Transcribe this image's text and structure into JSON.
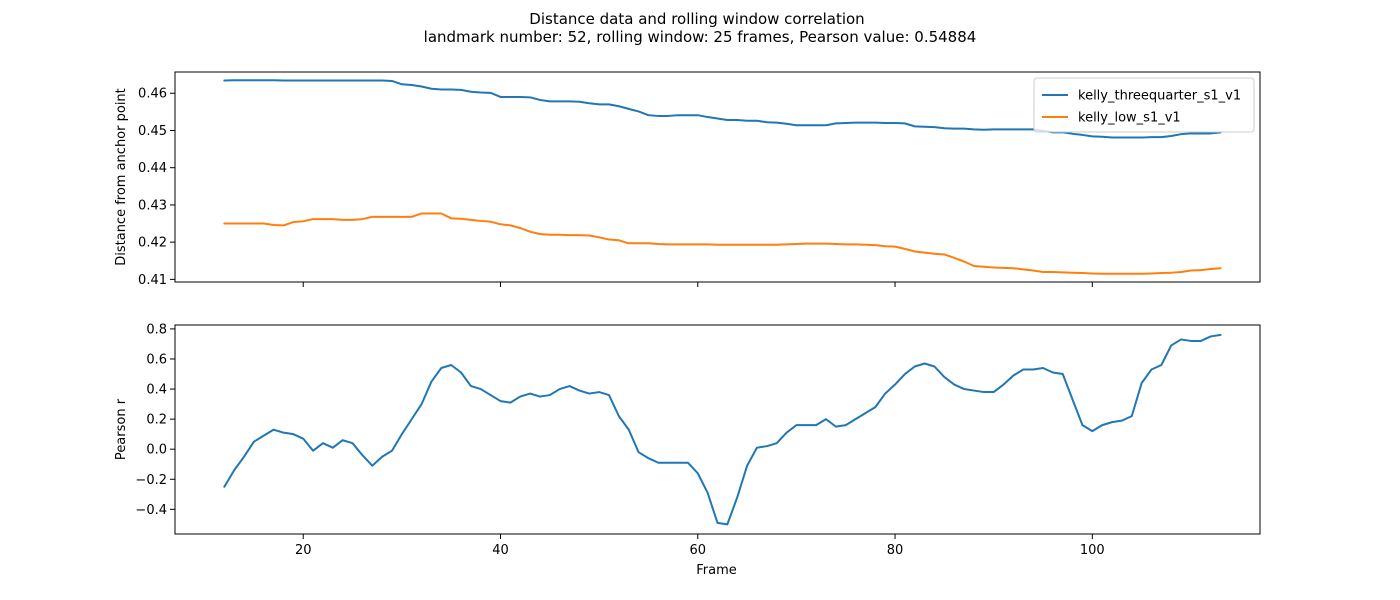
{
  "figure": {
    "title_line1": "Distance data and rolling window correlation",
    "title_line2": "landmark number: 52, rolling window: 25 frames, Pearson value: 0.54884"
  },
  "chart_data": [
    {
      "type": "line",
      "ylabel": "Distance from anchor point",
      "xlabel": "",
      "xlim": [
        7,
        117
      ],
      "ylim": [
        0.4093,
        0.4657
      ],
      "xticks": [
        20,
        40,
        60,
        80,
        100
      ],
      "xtick_labels": [
        "",
        "",
        "",
        "",
        ""
      ],
      "yticks": [
        0.41,
        0.42,
        0.43,
        0.44,
        0.45,
        0.46
      ],
      "ytick_labels": [
        "0.41",
        "0.42",
        "0.43",
        "0.44",
        "0.45",
        "0.46"
      ],
      "grid": false,
      "legend": "top-right",
      "x": [
        12,
        13,
        14,
        15,
        16,
        17,
        18,
        19,
        20,
        21,
        22,
        23,
        24,
        25,
        26,
        27,
        28,
        29,
        30,
        31,
        32,
        33,
        34,
        35,
        36,
        37,
        38,
        39,
        40,
        41,
        42,
        43,
        44,
        45,
        46,
        47,
        48,
        49,
        50,
        51,
        52,
        53,
        54,
        55,
        56,
        57,
        58,
        59,
        60,
        61,
        62,
        63,
        64,
        65,
        66,
        67,
        68,
        69,
        70,
        71,
        72,
        73,
        74,
        75,
        76,
        77,
        78,
        79,
        80,
        81,
        82,
        83,
        84,
        85,
        86,
        87,
        88,
        89,
        90,
        91,
        92,
        93,
        94,
        95,
        96,
        97,
        98,
        99,
        100,
        101,
        102,
        103,
        104,
        105,
        106,
        107,
        108,
        109,
        110,
        111,
        112,
        113
      ],
      "series": [
        {
          "name": "kelly_threequarter_s1_v1",
          "color": "#1f77b4",
          "values": [
            0.4634,
            0.4635,
            0.4635,
            0.4635,
            0.4635,
            0.4635,
            0.4634,
            0.4634,
            0.4634,
            0.4634,
            0.4634,
            0.4634,
            0.4634,
            0.4634,
            0.4634,
            0.4634,
            0.4634,
            0.4633,
            0.4624,
            0.4622,
            0.4618,
            0.4612,
            0.461,
            0.461,
            0.4609,
            0.4604,
            0.4602,
            0.4601,
            0.459,
            0.459,
            0.459,
            0.4589,
            0.4582,
            0.4578,
            0.4578,
            0.4578,
            0.4577,
            0.4573,
            0.457,
            0.457,
            0.4565,
            0.4558,
            0.4551,
            0.4541,
            0.4539,
            0.4539,
            0.4541,
            0.4541,
            0.4541,
            0.4536,
            0.4532,
            0.4528,
            0.4528,
            0.4526,
            0.4526,
            0.4522,
            0.4521,
            0.4518,
            0.4514,
            0.4514,
            0.4514,
            0.4514,
            0.4519,
            0.452,
            0.4521,
            0.4521,
            0.4521,
            0.452,
            0.452,
            0.4519,
            0.4511,
            0.451,
            0.4509,
            0.4506,
            0.4505,
            0.4505,
            0.4503,
            0.4502,
            0.4503,
            0.4503,
            0.4503,
            0.4503,
            0.4503,
            0.4499,
            0.4495,
            0.4495,
            0.4491,
            0.4488,
            0.4484,
            0.4483,
            0.4481,
            0.4481,
            0.4481,
            0.4481,
            0.4482,
            0.4482,
            0.4485,
            0.449,
            0.4492,
            0.4492,
            0.4492,
            0.4495
          ]
        },
        {
          "name": "kelly_low_s1_v1",
          "color": "#ff7f0e",
          "values": [
            0.425,
            0.425,
            0.425,
            0.425,
            0.425,
            0.4246,
            0.4245,
            0.4254,
            0.4256,
            0.4262,
            0.4262,
            0.4262,
            0.426,
            0.426,
            0.4262,
            0.4268,
            0.4268,
            0.4268,
            0.4268,
            0.4268,
            0.4277,
            0.4277,
            0.4277,
            0.4264,
            0.4263,
            0.426,
            0.4257,
            0.4255,
            0.4248,
            0.4245,
            0.4238,
            0.4228,
            0.4222,
            0.422,
            0.422,
            0.4219,
            0.4219,
            0.4218,
            0.4213,
            0.4207,
            0.4205,
            0.4197,
            0.4197,
            0.4197,
            0.4195,
            0.4194,
            0.4194,
            0.4194,
            0.4194,
            0.4194,
            0.4193,
            0.4193,
            0.4193,
            0.4193,
            0.4193,
            0.4193,
            0.4193,
            0.4194,
            0.4195,
            0.4196,
            0.4196,
            0.4196,
            0.4195,
            0.4194,
            0.4194,
            0.4193,
            0.4192,
            0.4189,
            0.4188,
            0.4182,
            0.4175,
            0.4172,
            0.4169,
            0.4167,
            0.4158,
            0.4148,
            0.4136,
            0.4134,
            0.4132,
            0.4131,
            0.413,
            0.4127,
            0.4124,
            0.412,
            0.412,
            0.4119,
            0.4118,
            0.4117,
            0.4116,
            0.4115,
            0.4115,
            0.4115,
            0.4115,
            0.4115,
            0.4116,
            0.4117,
            0.4118,
            0.412,
            0.4124,
            0.4125,
            0.4128,
            0.413
          ]
        }
      ]
    },
    {
      "type": "line",
      "ylabel": "Pearson r",
      "xlabel": "Frame",
      "xlim": [
        7,
        117
      ],
      "ylim": [
        -0.564,
        0.826
      ],
      "xticks": [
        20,
        40,
        60,
        80,
        100
      ],
      "xtick_labels": [
        "20",
        "40",
        "60",
        "80",
        "100"
      ],
      "yticks": [
        -0.4,
        -0.2,
        0.0,
        0.2,
        0.4,
        0.6,
        0.8
      ],
      "ytick_labels": [
        "−0.4",
        "−0.2",
        "0.0",
        "0.2",
        "0.4",
        "0.6",
        "0.8"
      ],
      "grid": false,
      "legend": "none",
      "x": [
        12,
        13,
        14,
        15,
        16,
        17,
        18,
        19,
        20,
        21,
        22,
        23,
        24,
        25,
        26,
        27,
        28,
        29,
        30,
        31,
        32,
        33,
        34,
        35,
        36,
        37,
        38,
        39,
        40,
        41,
        42,
        43,
        44,
        45,
        46,
        47,
        48,
        49,
        50,
        51,
        52,
        53,
        54,
        55,
        56,
        57,
        58,
        59,
        60,
        61,
        62,
        63,
        64,
        65,
        66,
        67,
        68,
        69,
        70,
        71,
        72,
        73,
        74,
        75,
        76,
        77,
        78,
        79,
        80,
        81,
        82,
        83,
        84,
        85,
        86,
        87,
        88,
        89,
        90,
        91,
        92,
        93,
        94,
        95,
        96,
        97,
        98,
        99,
        100,
        101,
        102,
        103,
        104,
        105,
        106,
        107,
        108,
        109,
        110,
        111,
        112,
        113
      ],
      "series": [
        {
          "name": "",
          "color": "#1f77b4",
          "values": [
            -0.25,
            -0.14,
            -0.05,
            0.05,
            0.09,
            0.13,
            0.11,
            0.1,
            0.07,
            -0.01,
            0.04,
            0.01,
            0.06,
            0.04,
            -0.04,
            -0.11,
            -0.05,
            -0.01,
            0.1,
            0.2,
            0.3,
            0.45,
            0.54,
            0.56,
            0.51,
            0.42,
            0.4,
            0.36,
            0.32,
            0.31,
            0.35,
            0.37,
            0.35,
            0.36,
            0.4,
            0.42,
            0.39,
            0.37,
            0.38,
            0.36,
            0.22,
            0.13,
            -0.02,
            -0.06,
            -0.09,
            -0.09,
            -0.09,
            -0.09,
            -0.16,
            -0.29,
            -0.49,
            -0.5,
            -0.32,
            -0.11,
            0.01,
            0.02,
            0.04,
            0.11,
            0.16,
            0.16,
            0.16,
            0.2,
            0.15,
            0.16,
            0.2,
            0.24,
            0.28,
            0.37,
            0.43,
            0.5,
            0.55,
            0.57,
            0.55,
            0.48,
            0.43,
            0.4,
            0.39,
            0.38,
            0.38,
            0.43,
            0.49,
            0.53,
            0.53,
            0.54,
            0.51,
            0.5,
            0.33,
            0.16,
            0.12,
            0.16,
            0.18,
            0.19,
            0.22,
            0.44,
            0.53,
            0.56,
            0.69,
            0.73,
            0.72,
            0.72,
            0.75,
            0.76
          ]
        }
      ]
    }
  ]
}
